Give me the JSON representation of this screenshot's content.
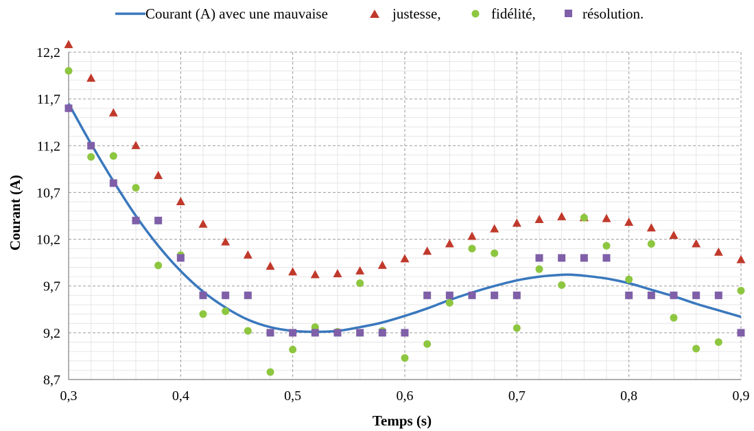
{
  "chart_data": {
    "type": "scatter",
    "title": "",
    "xlabel": "Temps (s)",
    "ylabel": "Courant (A)",
    "xlim": [
      0.3,
      0.9
    ],
    "ylim": [
      8.7,
      12.2
    ],
    "x_ticks": [
      "0,3",
      "0,4",
      "0,5",
      "0,6",
      "0,7",
      "0,8",
      "0,9"
    ],
    "y_ticks": [
      "8,7",
      "9,2",
      "9,7",
      "10,2",
      "10,7",
      "11,2",
      "11,7",
      "12,2"
    ],
    "grid": true,
    "legend_position": "top",
    "legend": [
      "Courant (A) avec une mauvaise",
      "justesse,",
      "fidélité,",
      "résolution."
    ],
    "curve": {
      "name": "Courant (A) avec une mauvaise",
      "color": "#3a78bd",
      "x": [
        0.3,
        0.32,
        0.34,
        0.36,
        0.38,
        0.4,
        0.42,
        0.44,
        0.46,
        0.48,
        0.5,
        0.52,
        0.54,
        0.56,
        0.58,
        0.6,
        0.62,
        0.64,
        0.66,
        0.68,
        0.7,
        0.72,
        0.74,
        0.75,
        0.76,
        0.78,
        0.8,
        0.82,
        0.84,
        0.86,
        0.88,
        0.9
      ],
      "y": [
        11.65,
        11.22,
        10.82,
        10.45,
        10.13,
        9.86,
        9.64,
        9.47,
        9.34,
        9.26,
        9.22,
        9.21,
        9.22,
        9.26,
        9.31,
        9.38,
        9.46,
        9.55,
        9.63,
        9.7,
        9.76,
        9.8,
        9.82,
        9.82,
        9.81,
        9.78,
        9.73,
        9.66,
        9.59,
        9.51,
        9.44,
        9.37
      ]
    },
    "series": [
      {
        "name": "justesse,",
        "marker": "triangle",
        "color": "#c0392b",
        "x": [
          0.3,
          0.32,
          0.34,
          0.36,
          0.38,
          0.4,
          0.42,
          0.44,
          0.46,
          0.48,
          0.5,
          0.52,
          0.54,
          0.56,
          0.58,
          0.6,
          0.62,
          0.64,
          0.66,
          0.68,
          0.7,
          0.72,
          0.74,
          0.76,
          0.78,
          0.8,
          0.82,
          0.84,
          0.86,
          0.88,
          0.9
        ],
        "y": [
          12.28,
          11.92,
          11.55,
          11.2,
          10.88,
          10.6,
          10.36,
          10.17,
          10.03,
          9.91,
          9.85,
          9.82,
          9.83,
          9.86,
          9.92,
          9.99,
          10.07,
          10.15,
          10.23,
          10.31,
          10.37,
          10.41,
          10.44,
          10.43,
          10.42,
          10.38,
          10.32,
          10.24,
          10.15,
          10.06,
          9.98
        ]
      },
      {
        "name": "fidélité,",
        "marker": "circle",
        "color": "#8dc63f",
        "x": [
          0.3,
          0.32,
          0.34,
          0.36,
          0.38,
          0.4,
          0.42,
          0.44,
          0.46,
          0.48,
          0.5,
          0.52,
          0.54,
          0.56,
          0.58,
          0.6,
          0.62,
          0.64,
          0.66,
          0.68,
          0.7,
          0.72,
          0.74,
          0.76,
          0.78,
          0.8,
          0.82,
          0.84,
          0.86,
          0.88,
          0.9
        ],
        "y": [
          12.0,
          11.08,
          11.09,
          10.75,
          9.92,
          10.03,
          9.4,
          9.43,
          9.22,
          8.78,
          9.02,
          9.26,
          9.21,
          9.73,
          9.22,
          8.93,
          9.08,
          9.52,
          10.1,
          10.05,
          9.25,
          9.88,
          9.71,
          10.43,
          10.13,
          9.77,
          10.15,
          9.36,
          9.03,
          9.1,
          9.65
        ]
      },
      {
        "name": "résolution.",
        "marker": "square",
        "color": "#7f5fa8",
        "x": [
          0.3,
          0.32,
          0.34,
          0.36,
          0.38,
          0.4,
          0.42,
          0.44,
          0.46,
          0.48,
          0.5,
          0.52,
          0.54,
          0.56,
          0.58,
          0.6,
          0.62,
          0.64,
          0.66,
          0.68,
          0.7,
          0.72,
          0.74,
          0.76,
          0.78,
          0.8,
          0.82,
          0.84,
          0.86,
          0.88,
          0.9
        ],
        "y": [
          11.6,
          11.2,
          10.8,
          10.4,
          10.4,
          10.0,
          9.6,
          9.6,
          9.6,
          9.2,
          9.2,
          9.2,
          9.2,
          9.2,
          9.2,
          9.2,
          9.6,
          9.6,
          9.6,
          9.6,
          9.6,
          10.0,
          10.0,
          10.0,
          10.0,
          9.6,
          9.6,
          9.6,
          9.6,
          9.6,
          9.2
        ]
      }
    ]
  }
}
